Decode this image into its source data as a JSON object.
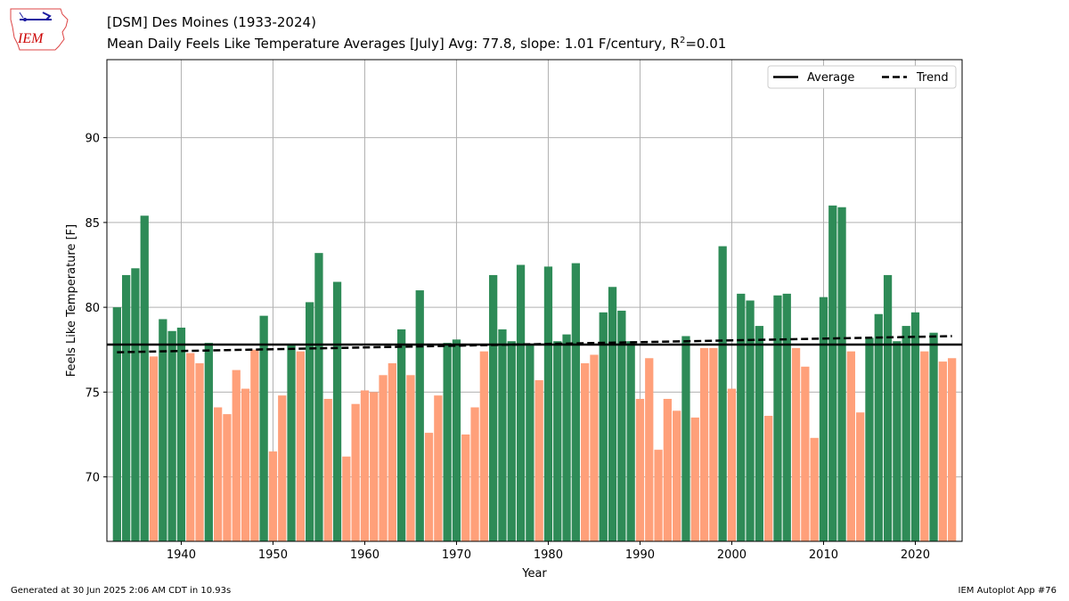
{
  "header": {
    "logo_text": "IEM",
    "title": "[DSM] Des Moines (1933-2024)",
    "subtitle_prefix": "Mean Daily Feels Like Temperature Averages [July]  Avg: 77.8, slope: 1.01 F/century, R",
    "subtitle_sup": "2",
    "subtitle_suffix": "=0.01"
  },
  "footer": {
    "generated": "Generated at 30 Jun 2025 2:06 AM CDT in 10.93s",
    "app": "IEM Autoplot App #76"
  },
  "colors": {
    "above": "#2e8b57",
    "below": "#ffa07a",
    "average_line": "#000000",
    "trend_line": "#000000",
    "grid": "#b0b0b0"
  },
  "chart_data": {
    "type": "bar",
    "xlabel": "Year",
    "ylabel": "Feels Like Temperature [F]",
    "xlim": [
      1931.9,
      2025.1
    ],
    "ylim": [
      66.2,
      94.6
    ],
    "xticks": [
      1940,
      1950,
      1960,
      1970,
      1980,
      1990,
      2000,
      2010,
      2020
    ],
    "yticks": [
      70,
      75,
      80,
      85,
      90
    ],
    "grid": true,
    "legend": {
      "placement": "top-right",
      "entries": [
        "Average",
        "Trend"
      ]
    },
    "average": 77.8,
    "trend": {
      "start_year": 1933,
      "start_value": 77.35,
      "end_year": 2024,
      "end_value": 78.3
    },
    "years": [
      1933,
      1934,
      1935,
      1936,
      1937,
      1938,
      1939,
      1940,
      1941,
      1942,
      1943,
      1944,
      1945,
      1946,
      1947,
      1948,
      1949,
      1950,
      1951,
      1952,
      1953,
      1954,
      1955,
      1956,
      1957,
      1958,
      1959,
      1960,
      1961,
      1962,
      1963,
      1964,
      1965,
      1966,
      1967,
      1968,
      1969,
      1970,
      1971,
      1972,
      1973,
      1974,
      1975,
      1976,
      1977,
      1978,
      1979,
      1980,
      1981,
      1982,
      1983,
      1984,
      1985,
      1986,
      1987,
      1988,
      1989,
      1990,
      1991,
      1992,
      1993,
      1994,
      1995,
      1996,
      1997,
      1998,
      1999,
      2000,
      2001,
      2002,
      2003,
      2004,
      2005,
      2006,
      2007,
      2008,
      2009,
      2010,
      2011,
      2012,
      2013,
      2014,
      2015,
      2016,
      2017,
      2018,
      2019,
      2020,
      2021,
      2022,
      2023,
      2024
    ],
    "values": [
      80.0,
      81.9,
      82.3,
      85.4,
      77.1,
      79.3,
      78.6,
      78.8,
      77.3,
      76.7,
      77.9,
      74.1,
      73.7,
      76.3,
      75.2,
      77.5,
      79.5,
      71.5,
      74.8,
      77.8,
      77.4,
      80.3,
      83.2,
      74.6,
      81.5,
      71.2,
      74.3,
      75.1,
      75.0,
      76.0,
      76.7,
      78.7,
      76.0,
      81.0,
      72.6,
      74.8,
      77.9,
      78.1,
      72.5,
      74.1,
      77.4,
      81.9,
      78.7,
      78.0,
      82.5,
      77.8,
      75.7,
      82.4,
      78.0,
      78.4,
      82.6,
      76.7,
      77.2,
      79.7,
      81.2,
      79.8,
      78.0,
      74.6,
      77.0,
      71.6,
      74.6,
      73.9,
      78.3,
      73.5,
      77.6,
      77.6,
      83.6,
      75.2,
      80.8,
      80.4,
      78.9,
      73.6,
      80.7,
      80.8,
      77.6,
      76.5,
      72.3,
      80.6,
      86.0,
      85.9,
      77.4,
      73.8,
      78.2,
      79.6,
      81.9,
      78.0,
      78.9,
      79.7,
      77.4,
      78.5,
      76.8,
      77.0
    ]
  }
}
